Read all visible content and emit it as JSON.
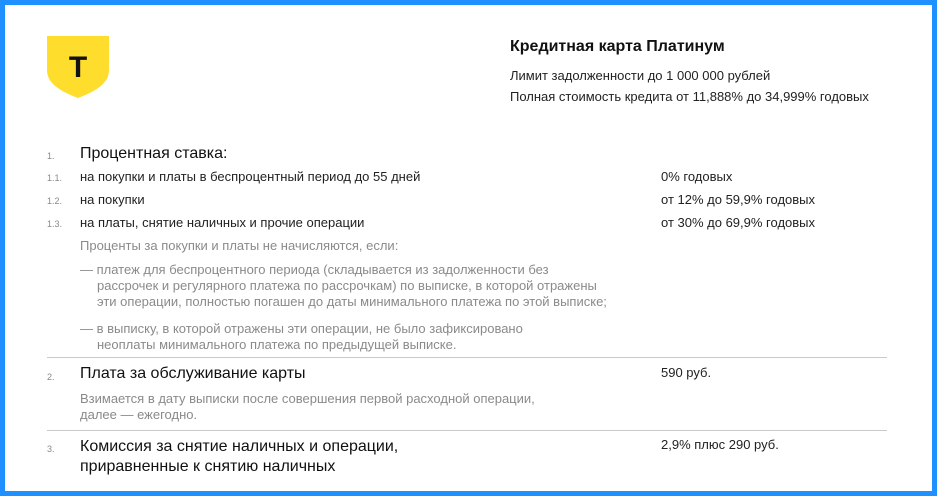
{
  "header": {
    "title": "Кредитная карта Платинум",
    "limit": "Лимит задолженности до 1 000 000 рублей",
    "cost": "Полная стоимость кредита от 11,888% до 34,999% годовых"
  },
  "logo": {
    "letter": "Т",
    "color": "#ffdd2d"
  },
  "sections": {
    "s1": {
      "number": "1.",
      "title": "Процентная ставка:",
      "items": [
        {
          "number": "1.1.",
          "label": "на покупки и платы в беспроцентный период до 55 дней",
          "value": "0% годовых"
        },
        {
          "number": "1.2.",
          "label": "на покупки",
          "value": "от 12% до 59,9% годовых"
        },
        {
          "number": "1.3.",
          "label": "на платы, снятие наличных и прочие операции",
          "value": "от 30% до 69,9% годовых"
        }
      ],
      "note_title": "Проценты за покупки и платы не начисляются, если:",
      "bullet1_l1": "— платеж для беспроцентного периода (складывается из задолженности без",
      "bullet1_l2": "рассрочек и регулярного платежа по рассрочкам) по выписке, в которой отражены",
      "bullet1_l3": "эти операции, полностью погашен до даты минимального платежа по этой выписке;",
      "bullet2_l1": "— в выписку, в которой отражены эти операции, не было зафиксировано",
      "bullet2_l2": "неоплаты минимального платежа по предыдущей выписке."
    },
    "s2": {
      "number": "2.",
      "title": "Плата за обслуживание карты",
      "value": "590 руб.",
      "note_l1": "Взимается в дату выписки после совершения первой расходной операции,",
      "note_l2": "далее — ежегодно."
    },
    "s3": {
      "number": "3.",
      "title_l1": "Комиссия за снятие наличных и операции,",
      "title_l2": "приравненные к снятию наличных",
      "value": "2,9% плюс 290 руб."
    }
  },
  "colors": {
    "frame": "#1e90ff",
    "muted_text": "#8a8a8a",
    "divider": "#c9c9c9"
  }
}
